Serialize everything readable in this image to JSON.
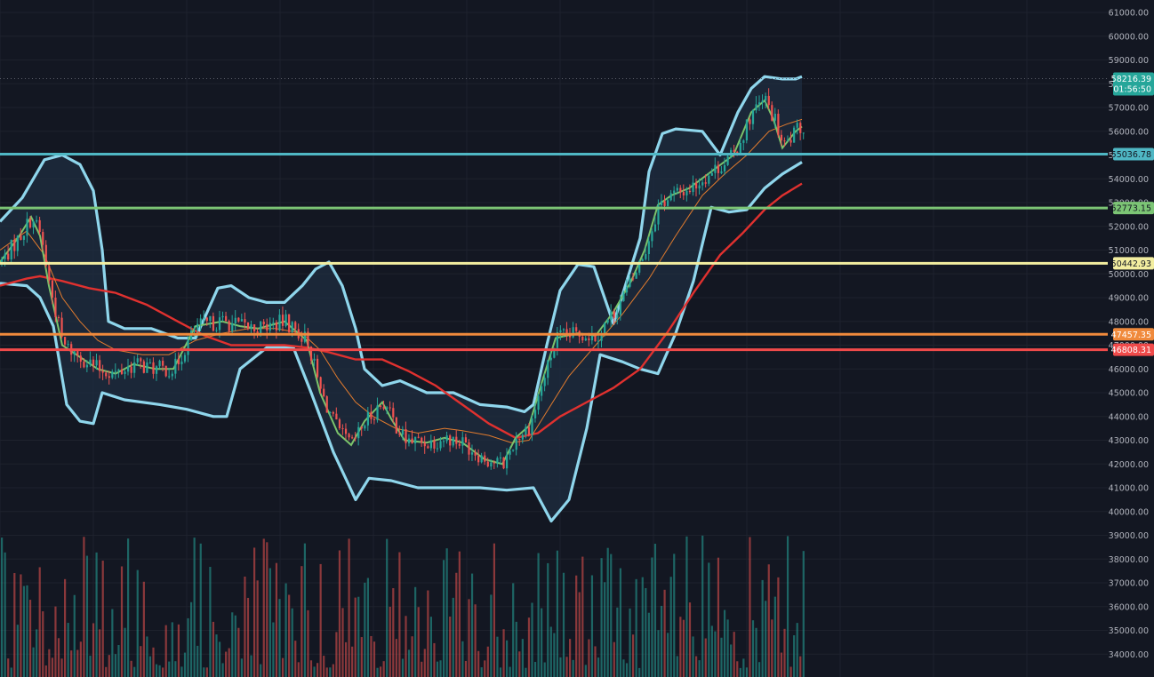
{
  "chart_data": {
    "type": "candlestick",
    "y_axis": {
      "range": [
        33600,
        61400
      ],
      "ticks": [
        "34000.00",
        "35000.00",
        "36000.00",
        "37000.00",
        "38000.00",
        "39000.00",
        "40000.00",
        "41000.00",
        "42000.00",
        "43000.00",
        "44000.00",
        "45000.00",
        "46000.00",
        "47000.00",
        "48000.00",
        "49000.00",
        "50000.00",
        "51000.00",
        "52000.00",
        "53000.00",
        "54000.00",
        "55000.00",
        "56000.00",
        "57000.00",
        "58000.00",
        "59000.00",
        "60000.00",
        "61000.00"
      ]
    },
    "current_price": {
      "value": "58216.39",
      "countdown": "01:56:50",
      "color": "#26a69a"
    },
    "horizontal_levels": [
      {
        "value": "55036.78",
        "price": 55036.78,
        "color": "#4fb7c4"
      },
      {
        "value": "52773.15",
        "price": 52773.15,
        "color": "#7cc575"
      },
      {
        "value": "50442.93",
        "price": 50442.93,
        "color": "#f3eea0"
      },
      {
        "value": "47457.35",
        "price": 47457.35,
        "color": "#f08a3c"
      },
      {
        "value": "46808.31",
        "price": 46808.31,
        "color": "#f04a4a"
      }
    ],
    "upper_band_points": [
      [
        0,
        52200
      ],
      [
        25,
        53200
      ],
      [
        50,
        54800
      ],
      [
        70,
        55000
      ],
      [
        90,
        54600
      ],
      [
        105,
        53500
      ],
      [
        115,
        51000
      ],
      [
        122,
        48000
      ],
      [
        140,
        47700
      ],
      [
        170,
        47700
      ],
      [
        200,
        47300
      ],
      [
        220,
        47300
      ],
      [
        245,
        49400
      ],
      [
        260,
        49500
      ],
      [
        280,
        49000
      ],
      [
        300,
        48800
      ],
      [
        320,
        48800
      ],
      [
        340,
        49500
      ],
      [
        355,
        50200
      ],
      [
        370,
        50500
      ],
      [
        385,
        49500
      ],
      [
        400,
        47700
      ],
      [
        410,
        46000
      ],
      [
        430,
        45300
      ],
      [
        450,
        45500
      ],
      [
        480,
        45000
      ],
      [
        510,
        45000
      ],
      [
        540,
        44500
      ],
      [
        570,
        44400
      ],
      [
        590,
        44200
      ],
      [
        600,
        44500
      ],
      [
        615,
        47000
      ],
      [
        630,
        49300
      ],
      [
        650,
        50400
      ],
      [
        668,
        50300
      ],
      [
        690,
        47900
      ],
      [
        720,
        51500
      ],
      [
        730,
        54300
      ],
      [
        745,
        55900
      ],
      [
        760,
        56100
      ],
      [
        790,
        56000
      ],
      [
        810,
        55000
      ],
      [
        830,
        56800
      ],
      [
        845,
        57800
      ],
      [
        860,
        58300
      ],
      [
        880,
        58200
      ],
      [
        895,
        58200
      ],
      [
        902,
        58300
      ]
    ],
    "lower_band_points": [
      [
        0,
        49600
      ],
      [
        30,
        49500
      ],
      [
        45,
        49000
      ],
      [
        60,
        47800
      ],
      [
        75,
        44500
      ],
      [
        90,
        43800
      ],
      [
        105,
        43700
      ],
      [
        115,
        45000
      ],
      [
        140,
        44700
      ],
      [
        180,
        44500
      ],
      [
        210,
        44300
      ],
      [
        240,
        44000
      ],
      [
        255,
        44000
      ],
      [
        270,
        46000
      ],
      [
        300,
        46900
      ],
      [
        330,
        46900
      ],
      [
        350,
        45000
      ],
      [
        375,
        42500
      ],
      [
        390,
        41300
      ],
      [
        400,
        40500
      ],
      [
        415,
        41400
      ],
      [
        440,
        41300
      ],
      [
        470,
        41000
      ],
      [
        500,
        41000
      ],
      [
        540,
        41000
      ],
      [
        570,
        40900
      ],
      [
        600,
        41000
      ],
      [
        620,
        39600
      ],
      [
        640,
        40500
      ],
      [
        660,
        43500
      ],
      [
        675,
        46600
      ],
      [
        700,
        46300
      ],
      [
        720,
        46000
      ],
      [
        740,
        45800
      ],
      [
        760,
        47500
      ],
      [
        780,
        49700
      ],
      [
        800,
        52800
      ],
      [
        820,
        52600
      ],
      [
        840,
        52700
      ],
      [
        860,
        53600
      ],
      [
        880,
        54200
      ],
      [
        902,
        54700
      ]
    ],
    "ma_fast_points": [
      [
        0,
        50500
      ],
      [
        20,
        51500
      ],
      [
        35,
        52400
      ],
      [
        45,
        51600
      ],
      [
        55,
        49500
      ],
      [
        70,
        47000
      ],
      [
        90,
        46500
      ],
      [
        110,
        46000
      ],
      [
        130,
        45800
      ],
      [
        150,
        46200
      ],
      [
        175,
        46000
      ],
      [
        195,
        46000
      ],
      [
        220,
        47800
      ],
      [
        250,
        48000
      ],
      [
        270,
        47800
      ],
      [
        290,
        47700
      ],
      [
        320,
        48000
      ],
      [
        345,
        47200
      ],
      [
        360,
        45000
      ],
      [
        380,
        43300
      ],
      [
        395,
        42800
      ],
      [
        410,
        43800
      ],
      [
        430,
        44600
      ],
      [
        440,
        43900
      ],
      [
        455,
        43000
      ],
      [
        480,
        42900
      ],
      [
        500,
        43100
      ],
      [
        520,
        42900
      ],
      [
        545,
        42200
      ],
      [
        565,
        42000
      ],
      [
        580,
        43100
      ],
      [
        595,
        43600
      ],
      [
        610,
        45500
      ],
      [
        625,
        47300
      ],
      [
        650,
        47500
      ],
      [
        670,
        47400
      ],
      [
        690,
        48400
      ],
      [
        710,
        49700
      ],
      [
        725,
        51000
      ],
      [
        740,
        52900
      ],
      [
        755,
        53300
      ],
      [
        775,
        53600
      ],
      [
        800,
        54300
      ],
      [
        825,
        55000
      ],
      [
        845,
        56800
      ],
      [
        860,
        57300
      ],
      [
        870,
        56500
      ],
      [
        880,
        55300
      ],
      [
        895,
        56000
      ],
      [
        902,
        56200
      ]
    ],
    "ma_mid_points": [
      [
        0,
        51000
      ],
      [
        30,
        51800
      ],
      [
        50,
        50800
      ],
      [
        70,
        49000
      ],
      [
        90,
        48000
      ],
      [
        110,
        47200
      ],
      [
        130,
        46800
      ],
      [
        160,
        46600
      ],
      [
        190,
        46600
      ],
      [
        220,
        47200
      ],
      [
        250,
        47500
      ],
      [
        280,
        47700
      ],
      [
        310,
        47700
      ],
      [
        340,
        47500
      ],
      [
        360,
        46800
      ],
      [
        380,
        45600
      ],
      [
        400,
        44600
      ],
      [
        420,
        44000
      ],
      [
        445,
        43500
      ],
      [
        470,
        43300
      ],
      [
        500,
        43500
      ],
      [
        520,
        43400
      ],
      [
        550,
        43200
      ],
      [
        575,
        42900
      ],
      [
        595,
        43000
      ],
      [
        615,
        44200
      ],
      [
        640,
        45700
      ],
      [
        670,
        47000
      ],
      [
        700,
        48300
      ],
      [
        730,
        49800
      ],
      [
        760,
        51600
      ],
      [
        790,
        53300
      ],
      [
        815,
        54200
      ],
      [
        840,
        55000
      ],
      [
        865,
        56000
      ],
      [
        885,
        56300
      ],
      [
        902,
        56500
      ]
    ],
    "ma_slow_points": [
      [
        0,
        49500
      ],
      [
        30,
        49800
      ],
      [
        45,
        49900
      ],
      [
        70,
        49700
      ],
      [
        100,
        49400
      ],
      [
        130,
        49200
      ],
      [
        165,
        48700
      ],
      [
        200,
        48000
      ],
      [
        230,
        47400
      ],
      [
        260,
        47000
      ],
      [
        290,
        47000
      ],
      [
        320,
        47000
      ],
      [
        345,
        46900
      ],
      [
        370,
        46700
      ],
      [
        400,
        46400
      ],
      [
        430,
        46400
      ],
      [
        460,
        45900
      ],
      [
        490,
        45300
      ],
      [
        520,
        44500
      ],
      [
        550,
        43700
      ],
      [
        580,
        43100
      ],
      [
        605,
        43300
      ],
      [
        630,
        44000
      ],
      [
        665,
        44700
      ],
      [
        690,
        45200
      ],
      [
        720,
        46000
      ],
      [
        750,
        47500
      ],
      [
        780,
        49200
      ],
      [
        810,
        50800
      ],
      [
        835,
        51700
      ],
      [
        860,
        52700
      ],
      [
        880,
        53300
      ],
      [
        902,
        53800
      ]
    ],
    "colors": {
      "background": "#131722",
      "up": "#26a69a",
      "down": "#ef5350",
      "band_line": "#8fd6ec",
      "band_fill": "#1f2d40",
      "ma_fast": "#7bc36b",
      "ma_mid": "#e17b2e",
      "ma_slow": "#e0312f"
    }
  }
}
